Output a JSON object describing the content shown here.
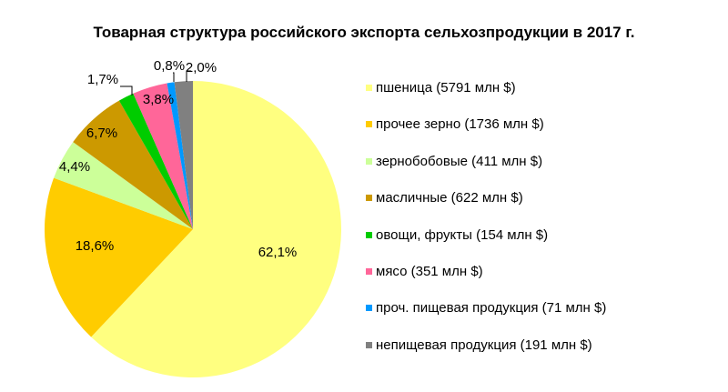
{
  "chart_data": {
    "type": "pie",
    "title": "Товарная структура российского экспорта  сельхозпродукции  в 2017 г.",
    "start_angle": "12 o'clock",
    "direction": "clockwise",
    "legend_position": "right",
    "slices": [
      {
        "name": "пшеница (5791 млн $)",
        "value": 62.1,
        "label": "62,1%",
        "color": "#FFFF80"
      },
      {
        "name": "прочее зерно (1736 млн $)",
        "value": 18.6,
        "label": "18,6%",
        "color": "#FFCC00"
      },
      {
        "name": "зернобобовые (411 млн $)",
        "value": 4.4,
        "label": "4,4%",
        "color": "#CCFF99"
      },
      {
        "name": "масличные (622 млн $)",
        "value": 6.7,
        "label": "6,7%",
        "color": "#CC9900"
      },
      {
        "name": "овощи, фрукты  (154 млн $)",
        "value": 1.7,
        "label": "1,7%",
        "color": "#00CC00"
      },
      {
        "name": "мясо (351 млн $)",
        "value": 3.8,
        "label": "3,8%",
        "color": "#FF6699"
      },
      {
        "name": "проч. пищевая продукция (71 млн $)",
        "value": 0.8,
        "label": "0,8%",
        "color": "#0099FF"
      },
      {
        "name": "непищевая продукция (191 млн $)",
        "value": 2.0,
        "label": "2,0%",
        "color": "#808080"
      }
    ]
  }
}
